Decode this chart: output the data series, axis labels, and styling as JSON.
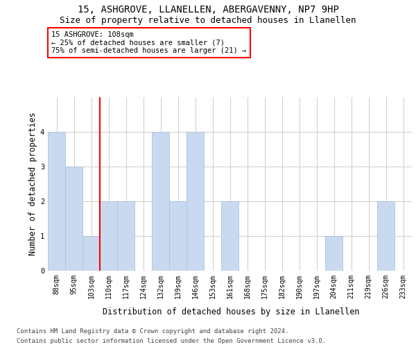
{
  "title_line1": "15, ASHGROVE, LLANELLEN, ABERGAVENNY, NP7 9HP",
  "title_line2": "Size of property relative to detached houses in Llanellen",
  "xlabel": "Distribution of detached houses by size in Llanellen",
  "ylabel": "Number of detached properties",
  "footer_line1": "Contains HM Land Registry data © Crown copyright and database right 2024.",
  "footer_line2": "Contains public sector information licensed under the Open Government Licence v3.0.",
  "categories": [
    "88sqm",
    "95sqm",
    "103sqm",
    "110sqm",
    "117sqm",
    "124sqm",
    "132sqm",
    "139sqm",
    "146sqm",
    "153sqm",
    "161sqm",
    "168sqm",
    "175sqm",
    "182sqm",
    "190sqm",
    "197sqm",
    "204sqm",
    "211sqm",
    "219sqm",
    "226sqm",
    "233sqm"
  ],
  "values": [
    4,
    3,
    1,
    2,
    2,
    0,
    4,
    2,
    4,
    0,
    2,
    0,
    0,
    0,
    0,
    0,
    1,
    0,
    0,
    2,
    0
  ],
  "bar_color": "#c9d9f0",
  "bar_edge_color": "#a8c4e0",
  "property_label": "15 ASHGROVE: 108sqm",
  "annotation_line1": "← 25% of detached houses are smaller (7)",
  "annotation_line2": "75% of semi-detached houses are larger (21) →",
  "vline_position": 2.5,
  "annotation_box_color": "white",
  "annotation_box_edgecolor": "red",
  "vline_color": "red",
  "ylim": [
    0,
    5
  ],
  "yticks": [
    0,
    1,
    2,
    3,
    4
  ],
  "grid_color": "#cccccc",
  "bg_color": "white",
  "title_fontsize": 10,
  "subtitle_fontsize": 9,
  "axis_label_fontsize": 8.5,
  "tick_fontsize": 7,
  "annotation_fontsize": 7.5,
  "footer_fontsize": 6.5
}
